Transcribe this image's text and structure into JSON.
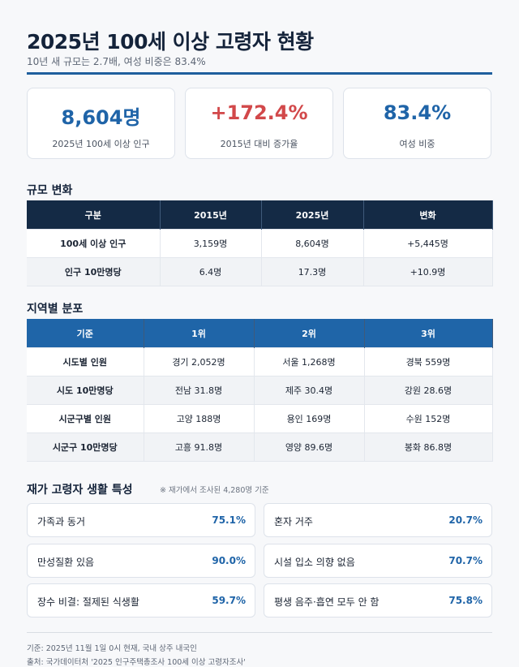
{
  "header": {
    "title": "2025년 100세 이상 고령자 현황",
    "subtitle": "10년 새 규모는 2.7배, 여성 비중은 83.4%"
  },
  "cards": [
    {
      "value": "8,604명",
      "label": "2025년 100세 이상 인구"
    },
    {
      "value": "+172.4%",
      "label": "2015년 대비 증가율"
    },
    {
      "value": "83.4%",
      "label": "여성 비중"
    }
  ],
  "scale": {
    "title": "규모 변화",
    "header": [
      "구분",
      "2015년",
      "2025년",
      "변화"
    ],
    "rows": [
      [
        "100세 이상 인구",
        "3,159명",
        "8,604명",
        "+5,445명"
      ],
      [
        "인구 10만명당",
        "6.4명",
        "17.3명",
        "+10.9명"
      ]
    ]
  },
  "region": {
    "title": "지역별 분포",
    "header": [
      "기준",
      "1위",
      "2위",
      "3위"
    ],
    "rows": [
      [
        "시도별 인원",
        "경기 2,052명",
        "서울 1,268명",
        "경북 559명"
      ],
      [
        "시도 10만명당",
        "전남 31.8명",
        "제주 30.4명",
        "강원 28.6명"
      ],
      [
        "시군구별 인원",
        "고양 188명",
        "용인 169명",
        "수원 152명"
      ],
      [
        "시군구 10만명당",
        "고흥 91.8명",
        "영양 89.6명",
        "봉화 86.8명"
      ]
    ]
  },
  "life": {
    "title": "재가 고령자 생활 특성",
    "note": "※ 재가에서 조사된 4,280명 기준",
    "items": [
      {
        "name": "가족과 동거",
        "value": "75.1%"
      },
      {
        "name": "혼자 거주",
        "value": "20.7%"
      },
      {
        "name": "만성질환 있음",
        "value": "90.0%"
      },
      {
        "name": "시설 입소 의향 없음",
        "value": "70.7%"
      },
      {
        "name": "장수 비결: 절제된 식생활",
        "value": "59.7%"
      },
      {
        "name": "평생 음주·흡연 모두 안 함",
        "value": "75.8%"
      }
    ]
  },
  "footer": [
    "기준: 2025년 11월 1일 0시 현재, 국내 상주 내국인",
    "출처: 국가데이터처 '2025 인구주택총조사 100세 이상 고령자조사'"
  ]
}
